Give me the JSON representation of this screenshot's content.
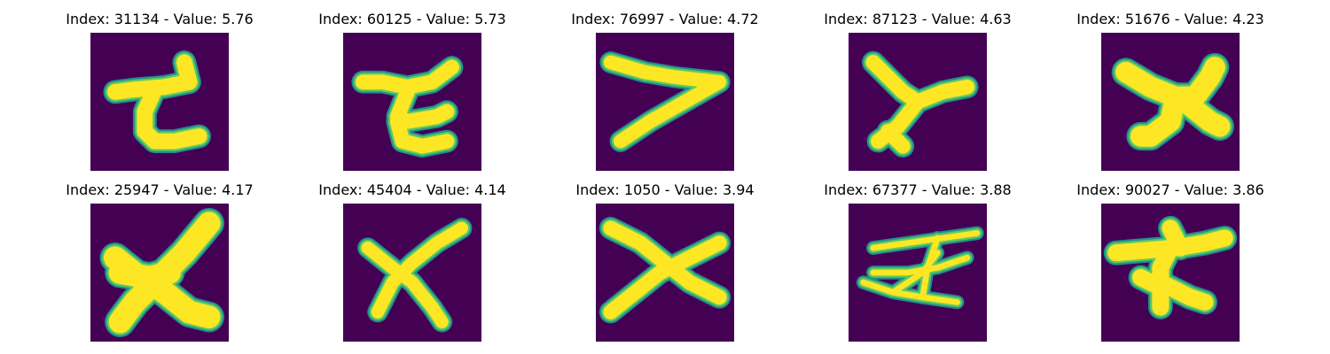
{
  "colors": {
    "background": "#440154",
    "edge": "#21918c",
    "mid": "#5ec962",
    "core": "#fde725"
  },
  "panels": [
    {
      "title": "Index: 31134 - Value: 5.76",
      "icon": "glyph-hooked-t"
    },
    {
      "title": "Index: 60125 - Value: 5.73",
      "icon": "glyph-z"
    },
    {
      "title": "Index: 76997 - Value: 4.72",
      "icon": "glyph-greater-than"
    },
    {
      "title": "Index: 87123 - Value: 4.63",
      "icon": "glyph-y"
    },
    {
      "title": "Index: 51676 - Value: 4.23",
      "icon": "glyph-bold-y"
    },
    {
      "title": "Index: 25947 - Value: 4.17",
      "icon": "glyph-bold-x"
    },
    {
      "title": "Index: 45404 - Value: 4.14",
      "icon": "glyph-x"
    },
    {
      "title": "Index: 1050 - Value: 3.94",
      "icon": "glyph-x"
    },
    {
      "title": "Index: 67377 - Value: 3.88",
      "icon": "glyph-scribble"
    },
    {
      "title": "Index: 90027 - Value: 3.86",
      "icon": "glyph-hooked-t"
    }
  ]
}
